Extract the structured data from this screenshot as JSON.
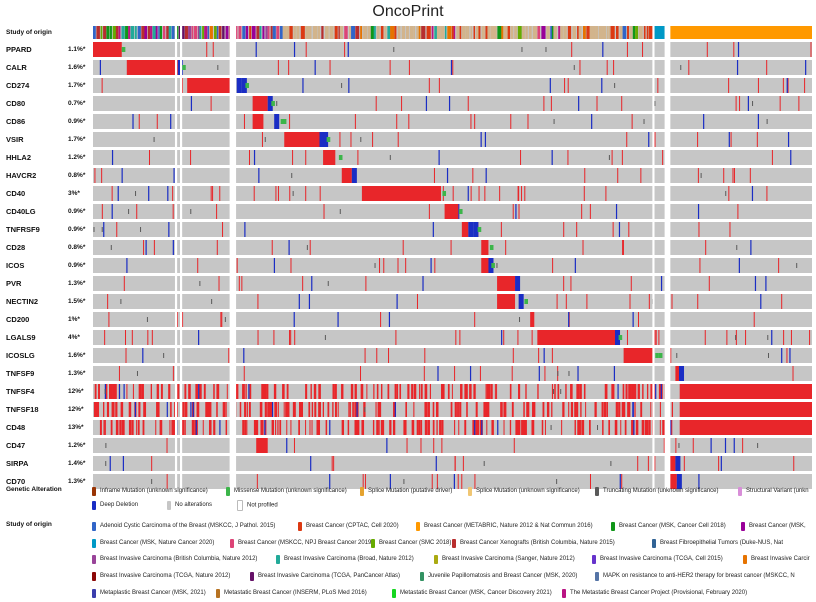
{
  "title": "OncoPrint",
  "chart_data": {
    "type": "table",
    "title": "OncoPrint",
    "study_track_label": "Study of origin",
    "genetic_alteration_label": "Genetic Alteration",
    "colors": {
      "amp": "#e8262a",
      "deep_del": "#1a2dc4",
      "missense": "#3cb54a",
      "truncating": "#5a5a5a",
      "inframe": "#993404",
      "splice": "#e5a32f",
      "sv": "#d88ed8",
      "no_alt": "#c6c6c6",
      "not_profiled": "#ffffff"
    },
    "genes": [
      {
        "name": "PPARD",
        "pct": "1.1%*",
        "block": [
          0.0,
          0.04
        ],
        "del": [],
        "mis": [
          0.04
        ]
      },
      {
        "name": "CALR",
        "pct": "1.6%*",
        "block": [
          0.047,
          0.118
        ],
        "del": [
          0.118
        ],
        "mis": [
          0.124
        ]
      },
      {
        "name": "CD274",
        "pct": "1.7%*",
        "block": [
          0.131,
          0.192
        ],
        "del": [
          0.192,
          0.2,
          0.207
        ],
        "mis": [
          0.212
        ]
      },
      {
        "name": "CD80",
        "pct": "0.7%*",
        "block": [
          0.222,
          0.243
        ],
        "del": [
          0.243
        ],
        "mis": [
          0.248
        ]
      },
      {
        "name": "CD86",
        "pct": "0.9%*",
        "block": [
          0.222,
          0.237
        ],
        "del": [
          0.252
        ],
        "mis": [
          0.261,
          0.264
        ]
      },
      {
        "name": "VSIR",
        "pct": "1.7%*",
        "block": [
          0.266,
          0.315
        ],
        "del": [
          0.315,
          0.32
        ],
        "mis": [
          0.325
        ]
      },
      {
        "name": "HHLA2",
        "pct": "1.2%*",
        "block": [
          0.32,
          0.337
        ],
        "del": [],
        "mis": [
          0.342
        ]
      },
      {
        "name": "HAVCR2",
        "pct": "0.8%*",
        "block": [
          0.346,
          0.36
        ],
        "del": [
          0.36
        ],
        "mis": []
      },
      {
        "name": "CD40",
        "pct": "3%*",
        "block": [
          0.374,
          0.484
        ],
        "del": [],
        "mis": [
          0.486
        ]
      },
      {
        "name": "CD40LG",
        "pct": "0.9%*",
        "block": [
          0.489,
          0.508
        ],
        "del": [],
        "mis": [
          0.509
        ]
      },
      {
        "name": "TNFRSF9",
        "pct": "0.9%*",
        "block": [
          0.513,
          0.522
        ],
        "del": [
          0.522,
          0.529
        ],
        "mis": [
          0.535
        ]
      },
      {
        "name": "CD28",
        "pct": "0.8%*",
        "block": [
          0.54,
          0.55
        ],
        "del": [],
        "mis": [
          0.552
        ]
      },
      {
        "name": "ICOS",
        "pct": "0.9%*",
        "block": [
          0.54,
          0.55
        ],
        "del": [
          0.55
        ],
        "mis": [
          0.554
        ]
      },
      {
        "name": "PVR",
        "pct": "1.3%*",
        "block": [
          0.562,
          0.587
        ],
        "del": [
          0.587
        ],
        "mis": []
      },
      {
        "name": "NECTIN2",
        "pct": "1.5%*",
        "block": [
          0.562,
          0.587
        ],
        "del": [
          0.592
        ],
        "mis": [
          0.6
        ]
      },
      {
        "name": "CD200",
        "pct": "1%*",
        "block": [
          0.608,
          0.613
        ],
        "del": [],
        "mis": []
      },
      {
        "name": "LGALS9",
        "pct": "4%*",
        "block": [
          0.618,
          0.726
        ],
        "del": [
          0.726
        ],
        "mis": [
          0.731
        ]
      },
      {
        "name": "ICOSLG",
        "pct": "1.6%*",
        "block": [
          0.738,
          0.78
        ],
        "del": [],
        "mis": [
          0.782,
          0.787
        ]
      },
      {
        "name": "TNFSF9",
        "pct": "1.3%*",
        "block": [
          0.81,
          0.815
        ],
        "del": [
          0.815
        ],
        "mis": []
      },
      {
        "name": "TNFSF4",
        "pct": "12%*",
        "block": [
          0.816,
          1.0
        ],
        "del": [],
        "mis": []
      },
      {
        "name": "TNFSF18",
        "pct": "12%*",
        "block": [
          0.816,
          1.0
        ],
        "del": [],
        "mis": []
      },
      {
        "name": "CD48",
        "pct": "13%*",
        "block": [
          0.816,
          1.0
        ],
        "del": [],
        "mis": []
      },
      {
        "name": "CD47",
        "pct": "1.2%*",
        "block": [
          0.227,
          0.243
        ],
        "del": [],
        "mis": []
      },
      {
        "name": "SIRPA",
        "pct": "1.4%*",
        "block": [
          0.797,
          0.81
        ],
        "del": [
          0.81
        ],
        "mis": []
      },
      {
        "name": "CD70",
        "pct": "1.3%*",
        "block": [
          0.797,
          0.812
        ],
        "del": [
          0.812
        ],
        "mis": []
      }
    ]
  },
  "genetic_legend": [
    {
      "label": "Inframe Mutation (unknown significance)",
      "color": "#993404"
    },
    {
      "label": "Missense Mutation (unknown significance)",
      "color": "#3cb54a"
    },
    {
      "label": "Splice Mutation (putative driver)",
      "color": "#e5a32f"
    },
    {
      "label": "Splice Mutation (unknown significance)",
      "color": "#f0c673"
    },
    {
      "label": "Truncating Mutation (unknown significance)",
      "color": "#5a5a5a"
    },
    {
      "label": "Structural Variant (unkn",
      "color": "#d88ed8"
    },
    {
      "label": "Deep Deletion",
      "color": "#1a2dc4"
    },
    {
      "label": "No alterations",
      "color": "#c6c6c6"
    },
    {
      "label": "Not profiled",
      "color": "#ffffff"
    }
  ],
  "study_legend_title": "Study of origin",
  "study_legend": [
    {
      "label": "Adenoid Cystic Carcinoma of the Breast (MSKCC, J Pathol. 2015)",
      "color": "#3165c8"
    },
    {
      "label": "Breast Cancer (CPTAC, Cell 2020)",
      "color": "#dc3912"
    },
    {
      "label": "Breast Cancer (METABRIC, Nature 2012 & Nat Commun 2016)",
      "color": "#ff9900"
    },
    {
      "label": "Breast Cancer (MSK, Cancer Cell 2018)",
      "color": "#109618"
    },
    {
      "label": "Breast Cancer (MSK,",
      "color": "#990099"
    },
    {
      "label": "Breast Cancer (MSK, Nature Cancer 2020)",
      "color": "#0099c6"
    },
    {
      "label": "Breast Cancer (MSKCC, NPJ Breast Cancer 2019)",
      "color": "#dd4477"
    },
    {
      "label": "Breast Cancer (SMC 2018)",
      "color": "#66aa00"
    },
    {
      "label": "Breast Cancer Xenografts (British Columbia, Nature 2015)",
      "color": "#b82e2e"
    },
    {
      "label": "Breast Fibroepithelial Tumors (Duke-NUS, Nat",
      "color": "#316395"
    },
    {
      "label": "Breast Invasive Carcinoma (British Columbia, Nature 2012)",
      "color": "#994499"
    },
    {
      "label": "Breast Invasive Carcinoma (Broad, Nature 2012)",
      "color": "#22aa99"
    },
    {
      "label": "Breast Invasive Carcinoma (Sanger, Nature 2012)",
      "color": "#aaaa11"
    },
    {
      "label": "Breast Invasive Carcinoma (TCGA, Cell 2015)",
      "color": "#6633cc"
    },
    {
      "label": "Breast Invasive Carcir",
      "color": "#e67300"
    },
    {
      "label": "Breast Invasive Carcinoma (TCGA, Nature 2012)",
      "color": "#8b0707"
    },
    {
      "label": "Breast Invasive Carcinoma (TCGA, PanCancer Atlas)",
      "color": "#651067"
    },
    {
      "label": "Juvenile Papillomatosis and Breast Cancer (MSK, 2020)",
      "color": "#329262"
    },
    {
      "label": "MAPK on resistance to anti-HER2 therapy for breast cancer (MSKCC, N",
      "color": "#5574a6"
    },
    {
      "label": "Metaplastic Breast Cancer (MSK, 2021)",
      "color": "#3b3eac"
    },
    {
      "label": "Metastatic Breast Cancer (INSERM, PLoS Med 2016)",
      "color": "#b77322"
    },
    {
      "label": "Metastatic Breast Cancer (MSK, Cancer Discovery 2021)",
      "color": "#16d620"
    },
    {
      "label": "The Metastatic Breast Cancer Project (Provisional, February 2020)",
      "color": "#b91383"
    }
  ]
}
